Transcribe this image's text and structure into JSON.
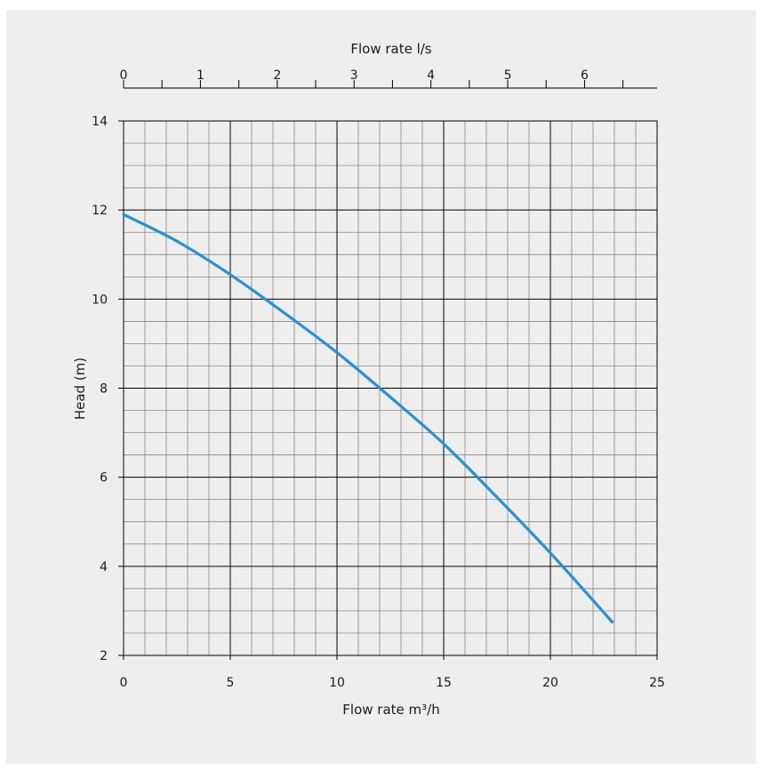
{
  "chart_data": {
    "type": "line",
    "title": "",
    "xlabel": "Flow rate m³/h",
    "x2label": "Flow rate l/s",
    "ylabel": "Head (m)",
    "xlim": [
      0,
      25
    ],
    "ylim": [
      2,
      14
    ],
    "x2lim": [
      0,
      6.944
    ],
    "xticks": [
      0,
      5,
      10,
      15,
      20,
      25
    ],
    "yticks": [
      2,
      4,
      6,
      8,
      10,
      12,
      14
    ],
    "x2ticks": [
      0,
      1,
      2,
      3,
      4,
      5,
      6
    ],
    "grid": true,
    "colors": {
      "line": "#2b8fd0",
      "major_grid": "#000000",
      "minor_grid": "#777777",
      "background": "#eeeeee"
    },
    "series": [
      {
        "x": [
          0,
          2.5,
          5,
          7.5,
          10,
          12.5,
          15,
          17.5,
          20,
          22.9
        ],
        "y": [
          11.9,
          11.3,
          10.55,
          9.7,
          8.8,
          7.8,
          6.75,
          5.55,
          4.3,
          2.75
        ]
      }
    ]
  }
}
